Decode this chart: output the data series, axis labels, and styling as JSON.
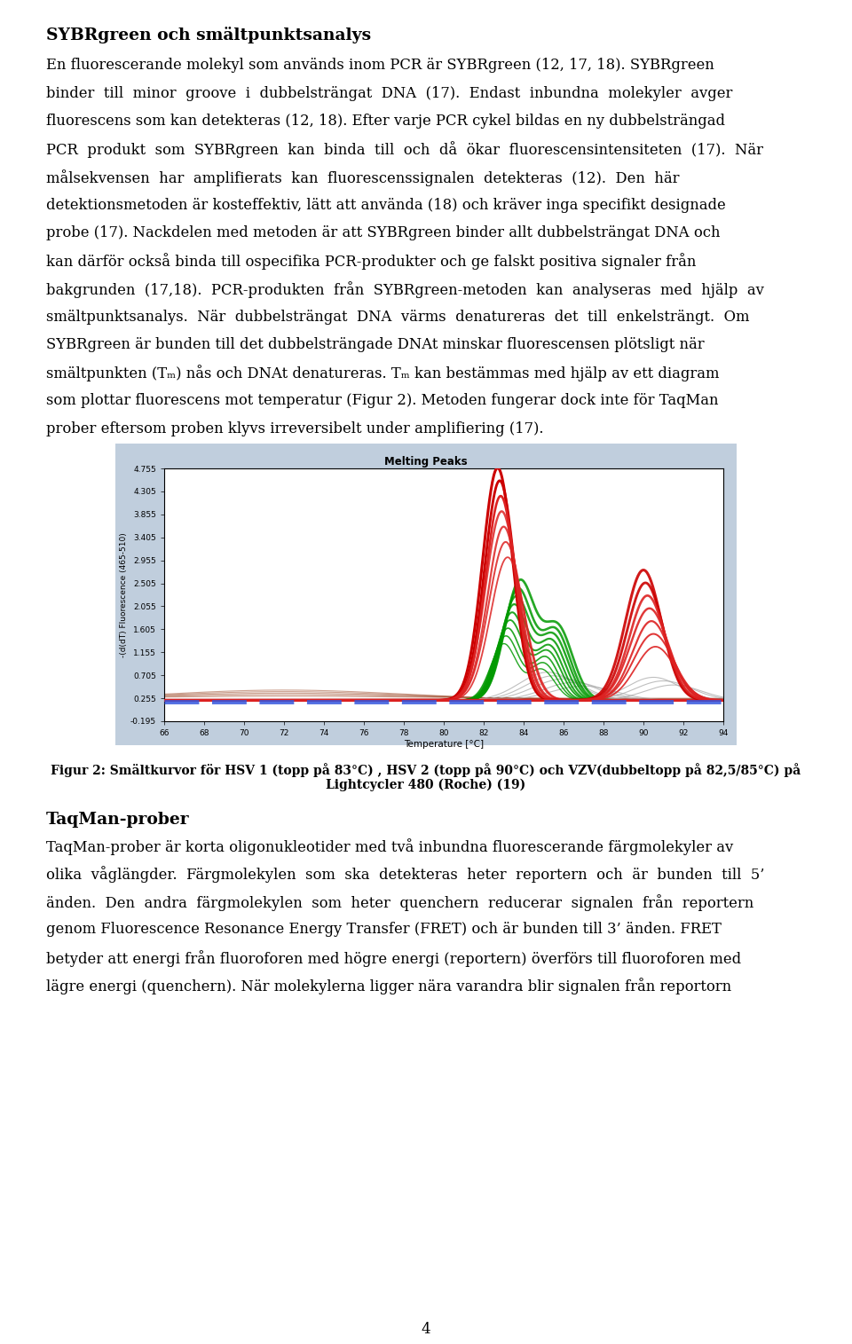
{
  "title": "SYBRgreen och smältpunktsanalys",
  "chart_title": "Melting Peaks",
  "chart_ylabel": "-(d(dT) Fluorescence (465-510)",
  "chart_xlabel": "Temperature [°C]",
  "chart_bg": "#c0cedd",
  "chart_inner_bg": "#ffffff",
  "x_ticks": [
    66,
    68,
    70,
    72,
    74,
    76,
    78,
    80,
    82,
    84,
    86,
    88,
    90,
    92,
    94
  ],
  "y_ticks": [
    -0.195,
    0.255,
    0.705,
    1.155,
    1.605,
    2.055,
    2.505,
    2.955,
    3.405,
    3.855,
    4.305,
    4.755
  ],
  "fig_caption_line1": "Figur 2: Smältkurvor för HSV 1 (topp på 83°C) , HSV 2 (topp på 90°C) och VZV(dubbeltopp på 82,5/85°C) på",
  "fig_caption_line2": "Lightcycler 480 (Roche) (19)",
  "section2_title": "TaqMan-prober",
  "page_num": "4",
  "background_color": "#ffffff",
  "text_color": "#000000",
  "para1_lines": [
    "En fluorescerande molekyl som används inom PCR är SYBRgreen (12, 17, 18). SYBRgreen",
    "binder  till  minor  groove  i  dubbelsträngat  DNA  (17).  Endast  inbundna  molekyler  avger",
    "fluorescens som kan detekteras (12, 18). Efter varje PCR cykel bildas en ny dubbelsträngad",
    "PCR  produkt  som  SYBRgreen  kan  binda  till  och  då  ökar  fluorescensintensiteten  (17).  När",
    "målsekvensen  har  amplifierats  kan  fluorescenssignalen  detekteras  (12).  Den  här",
    "detektionsmetoden är kosteffektiv, lätt att använda (18) och kräver inga specifikt designade",
    "probe (17). Nackdelen med metoden är att SYBRgreen binder allt dubbelsträngat DNA och",
    "kan därför också binda till ospecifika PCR-produkter och ge falskt positiva signaler från",
    "bakgrunden  (17,18).  PCR-produkten  från  SYBRgreen-metoden  kan  analyseras  med  hjälp  av",
    "smältpunktsanalys.  När  dubbelsträngat  DNA  värms  denatureras  det  till  enkelsträngt.  Om",
    "SYBRgreen är bunden till det dubbelsträngade DNAt minskar fluorescensen plötsligt när",
    "smältpunkten (Tₘ) nås och DNAt denatureras. Tₘ kan bestämmas med hjälp av ett diagram",
    "som plottar fluorescens mot temperatur (Figur 2). Metoden fungerar dock inte för TaqMan",
    "prober eftersom proben klyvs irreversibelt under amplifiering (17)."
  ],
  "para2_lines": [
    "TaqMan-prober är korta oligonukleotider med två inbundna fluorescerande färgmolekyler av",
    "olika  våglängder.  Färgmolekylen  som  ska  detekteras  heter  reportern  och  är  bunden  till  5’",
    "änden.  Den  andra  färgmolekylen  som  heter  quenchern  reducerar  signalen  från  reportern",
    "genom Fluorescence Resonance Energy Transfer (FRET) och är bunden till 3’ änden. FRET",
    "betyder att energi från fluoroforen med högre energi (reportern) överförs till fluoroforen med",
    "lägre energi (quenchern). När molekylerna ligger nära varandra blir signalen från reportorn"
  ]
}
